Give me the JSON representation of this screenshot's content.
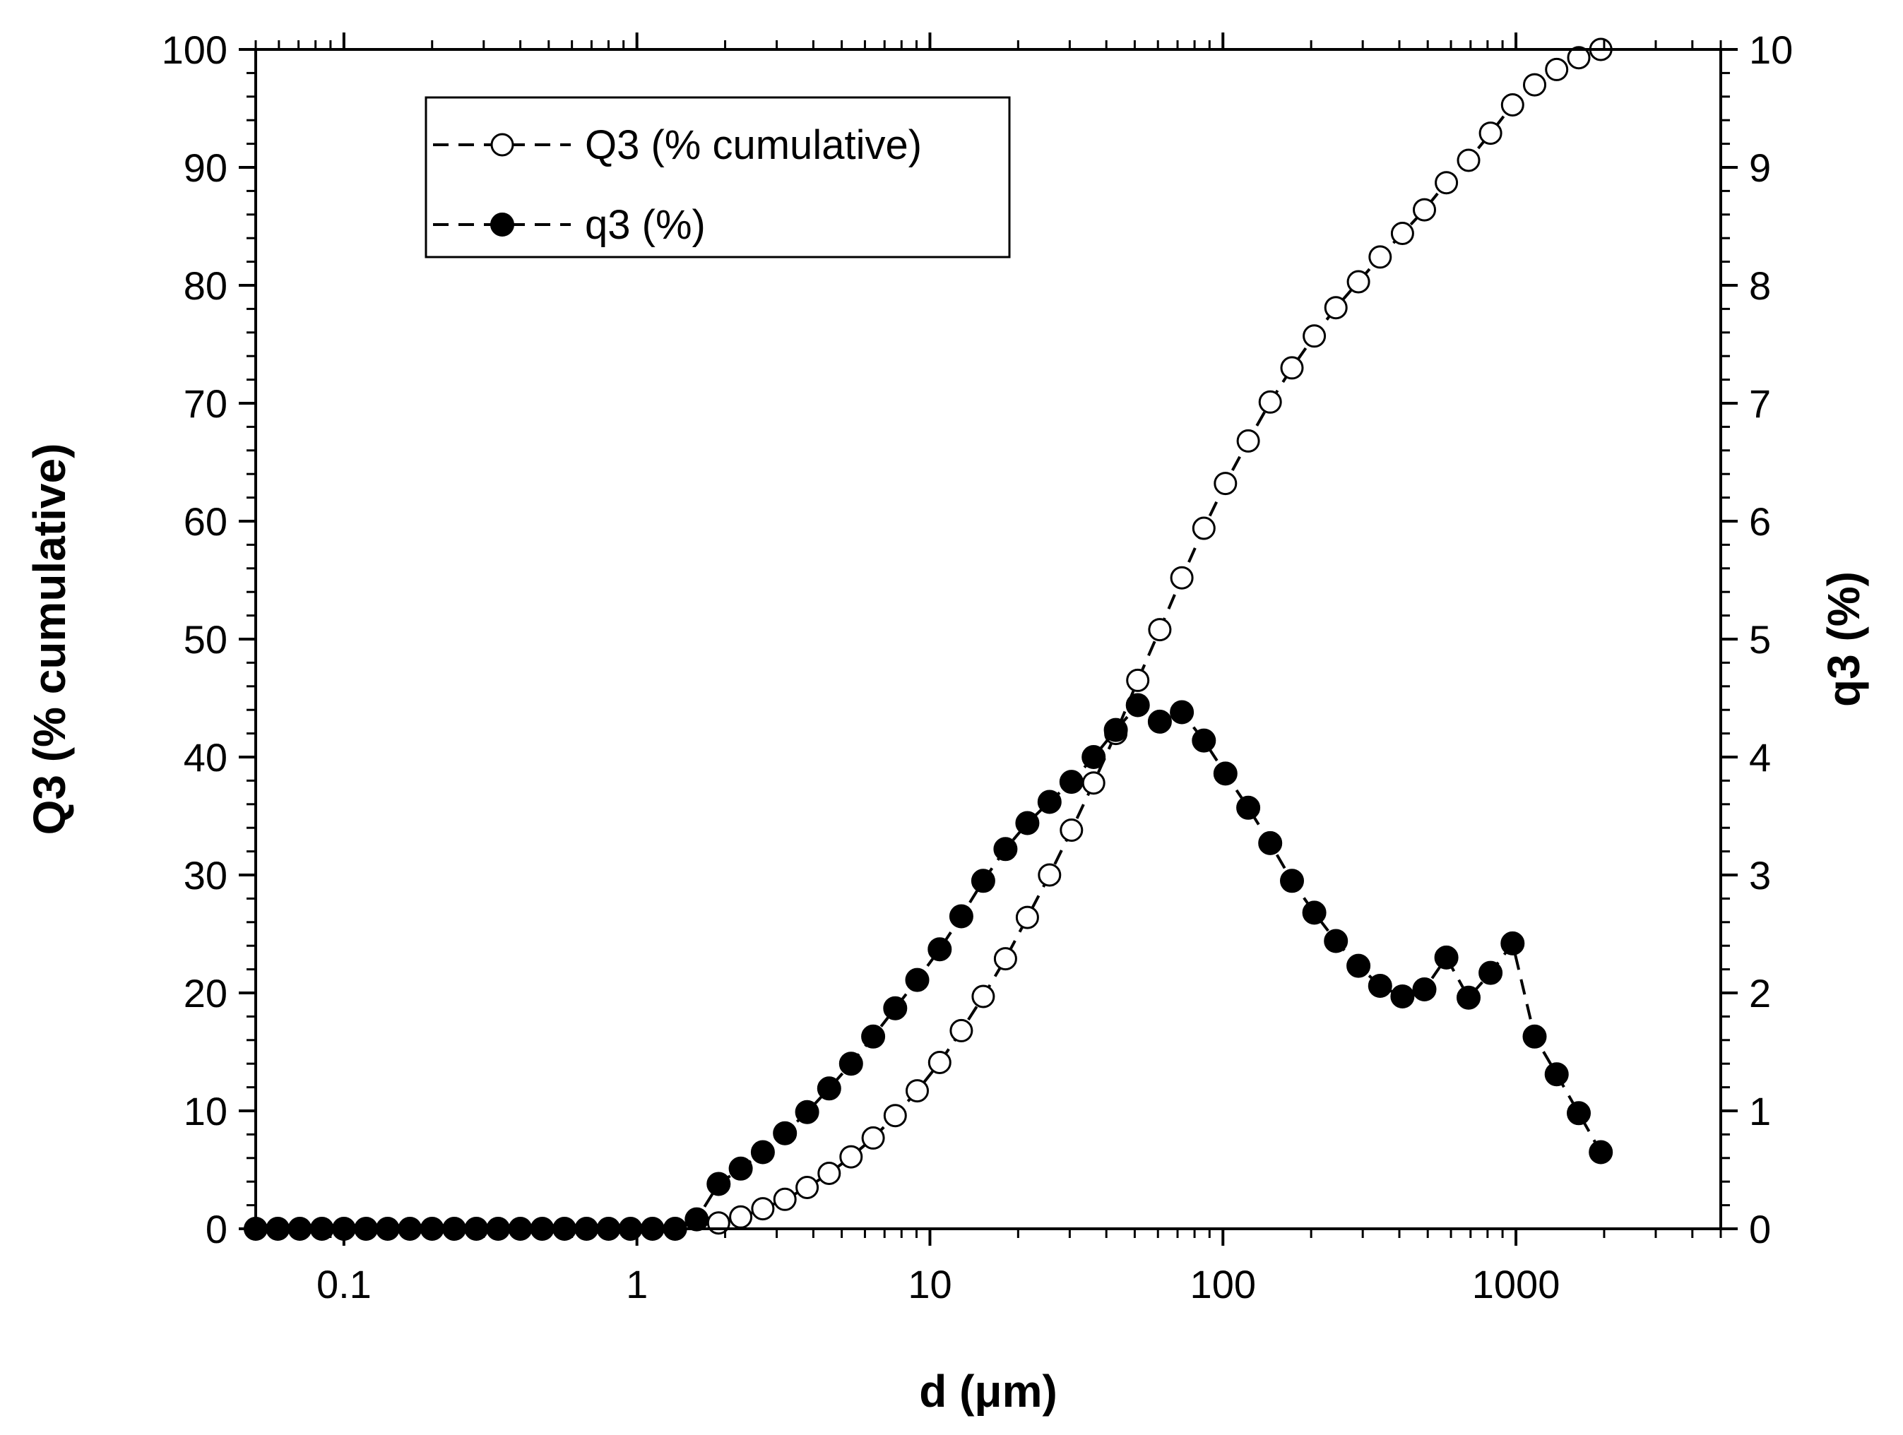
{
  "chart_data": {
    "type": "scatter",
    "title": "",
    "xlabel": "d (μm)",
    "ylabel": "Q3 (% cumulative)",
    "y2label": "q3 (%)",
    "xscale": "log",
    "xlim": [
      0.05,
      5000
    ],
    "ylim": [
      0,
      100
    ],
    "y2lim": [
      0,
      10
    ],
    "xticks": [
      {
        "value": 0.1,
        "label": "0.1"
      },
      {
        "value": 1,
        "label": "1"
      },
      {
        "value": 10,
        "label": "10"
      },
      {
        "value": 100,
        "label": "100"
      },
      {
        "value": 1000,
        "label": "1000"
      }
    ],
    "yticks": [
      "0",
      "10",
      "20",
      "30",
      "40",
      "50",
      "60",
      "70",
      "80",
      "90",
      "100"
    ],
    "y2ticks": [
      "0",
      "1",
      "2",
      "3",
      "4",
      "5",
      "6",
      "7",
      "8",
      "9",
      "10"
    ],
    "grid": false,
    "legend_position": "top-left",
    "x": [
      0.05,
      0.0595,
      0.0707,
      0.0841,
      0.1,
      0.119,
      0.141,
      0.168,
      0.2,
      0.238,
      0.283,
      0.336,
      0.4,
      0.475,
      0.566,
      0.673,
      0.8,
      0.951,
      1.13,
      1.35,
      1.6,
      1.9,
      2.26,
      2.69,
      3.2,
      3.81,
      4.53,
      5.38,
      6.4,
      7.61,
      9.05,
      10.8,
      12.8,
      15.2,
      18.1,
      21.5,
      25.6,
      30.4,
      36.2,
      43.1,
      51.2,
      60.9,
      72.4,
      86.1,
      102,
      122,
      145,
      172,
      205,
      243,
      290,
      344,
      410,
      487,
      579,
      689,
      819,
      974,
      1158,
      1377,
      1638,
      1948
    ],
    "series": [
      {
        "name": "Q3 (% cumulative)",
        "axis": "left",
        "marker": "open-circle",
        "line": "dashed",
        "values": [
          null,
          null,
          null,
          null,
          null,
          null,
          null,
          null,
          null,
          null,
          null,
          null,
          null,
          null,
          null,
          null,
          null,
          null,
          null,
          null,
          null,
          0.5,
          1.0,
          1.7,
          2.5,
          3.5,
          4.7,
          6.1,
          7.7,
          9.6,
          11.7,
          14.1,
          16.8,
          19.7,
          22.9,
          26.4,
          30.0,
          33.8,
          37.8,
          42.0,
          46.5,
          50.8,
          55.2,
          59.4,
          63.2,
          66.8,
          70.1,
          73.0,
          75.7,
          78.1,
          80.3,
          82.4,
          84.4,
          86.4,
          88.7,
          90.6,
          92.9,
          95.3,
          97.0,
          98.3,
          99.3,
          100.0
        ]
      },
      {
        "name": "q3 (%)",
        "axis": "right",
        "marker": "filled-circle",
        "line": "dashed",
        "values": [
          0,
          0,
          0,
          0,
          0,
          0,
          0,
          0,
          0,
          0,
          0,
          0,
          0,
          0,
          0,
          0,
          0,
          0,
          0,
          0,
          0.08,
          0.38,
          0.51,
          0.65,
          0.81,
          0.99,
          1.19,
          1.4,
          1.63,
          1.87,
          2.11,
          2.37,
          2.65,
          2.95,
          3.22,
          3.44,
          3.62,
          3.79,
          4.0,
          4.23,
          4.44,
          4.3,
          4.38,
          4.14,
          3.86,
          3.57,
          3.27,
          2.95,
          2.68,
          2.44,
          2.23,
          2.06,
          1.97,
          2.03,
          2.3,
          1.96,
          2.17,
          2.42,
          1.63,
          1.31,
          0.98,
          0.65
        ]
      }
    ]
  }
}
